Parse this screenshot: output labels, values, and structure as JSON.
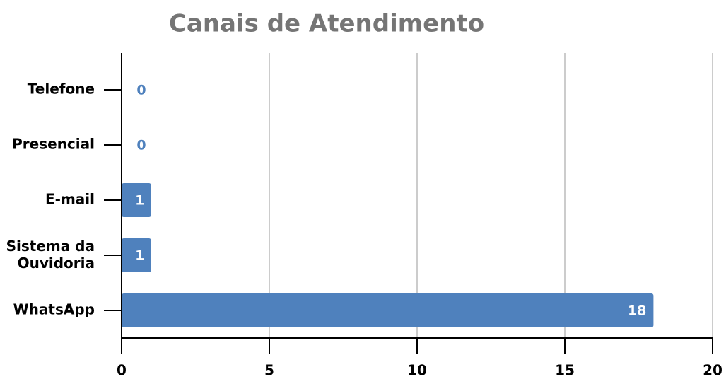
{
  "chart_data": {
    "type": "bar",
    "orientation": "horizontal",
    "title": "Canais de Atendimento",
    "categories": [
      "Telefone",
      "Presencial",
      "E-mail",
      "Sistema da Ouvidoria",
      "WhatsApp"
    ],
    "values": [
      0,
      0,
      1,
      1,
      18
    ],
    "color": "#4f81bd",
    "xlim": [
      0,
      20
    ],
    "xticks": [
      0,
      5,
      10,
      15,
      20
    ],
    "grid": true
  }
}
